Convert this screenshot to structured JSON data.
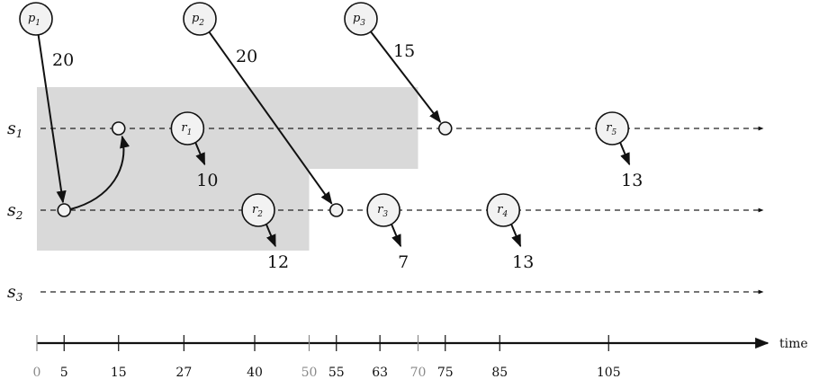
{
  "lanes": [
    {
      "letter": "s",
      "sub": "1"
    },
    {
      "letter": "s",
      "sub": "2"
    },
    {
      "letter": "s",
      "sub": "3"
    }
  ],
  "axis": {
    "label": "time",
    "ticks": [
      {
        "value": 0,
        "label": "0",
        "muted": true
      },
      {
        "value": 5,
        "label": "5",
        "muted": false
      },
      {
        "value": 15,
        "label": "15",
        "muted": false
      },
      {
        "value": 27,
        "label": "27",
        "muted": false
      },
      {
        "value": 40,
        "label": "40",
        "muted": false
      },
      {
        "value": 50,
        "label": "50",
        "muted": true
      },
      {
        "value": 55,
        "label": "55",
        "muted": false
      },
      {
        "value": 63,
        "label": "63",
        "muted": false
      },
      {
        "value": 70,
        "label": "70",
        "muted": true
      },
      {
        "value": 75,
        "label": "75",
        "muted": false
      },
      {
        "value": 85,
        "label": "85",
        "muted": false
      },
      {
        "value": 105,
        "label": "105",
        "muted": false
      }
    ]
  },
  "shaded_regions": [
    {
      "lane": 1,
      "from": 0,
      "to": 70
    },
    {
      "lane": 2,
      "from": 0,
      "to": 50
    }
  ],
  "producers": [
    {
      "letter": "p",
      "sub": "1",
      "value": "20",
      "target_lane": 2,
      "target_time": 5
    },
    {
      "letter": "p",
      "sub": "2",
      "value": "20",
      "target_lane": 2,
      "target_time": 55
    },
    {
      "letter": "p",
      "sub": "3",
      "value": "15",
      "target_lane": 1,
      "target_time": 75
    }
  ],
  "transfer": {
    "from_lane": 2,
    "from_time": 5,
    "to_lane": 1,
    "to_time": 15
  },
  "requests": [
    {
      "letter": "r",
      "sub": "1",
      "lane": 1,
      "time": 27,
      "value": "10"
    },
    {
      "letter": "r",
      "sub": "2",
      "lane": 2,
      "time": 40,
      "value": "12"
    },
    {
      "letter": "r",
      "sub": "3",
      "lane": 2,
      "time": 63,
      "value": "7"
    },
    {
      "letter": "r",
      "sub": "4",
      "lane": 2,
      "time": 85,
      "value": "13"
    },
    {
      "letter": "r",
      "sub": "5",
      "lane": 1,
      "time": 105,
      "value": "13"
    }
  ],
  "colors": {
    "shade": "#d9d9d9",
    "node_fill": "#f2f2f2",
    "ink": "#111111",
    "muted": "#8a8a8a"
  }
}
